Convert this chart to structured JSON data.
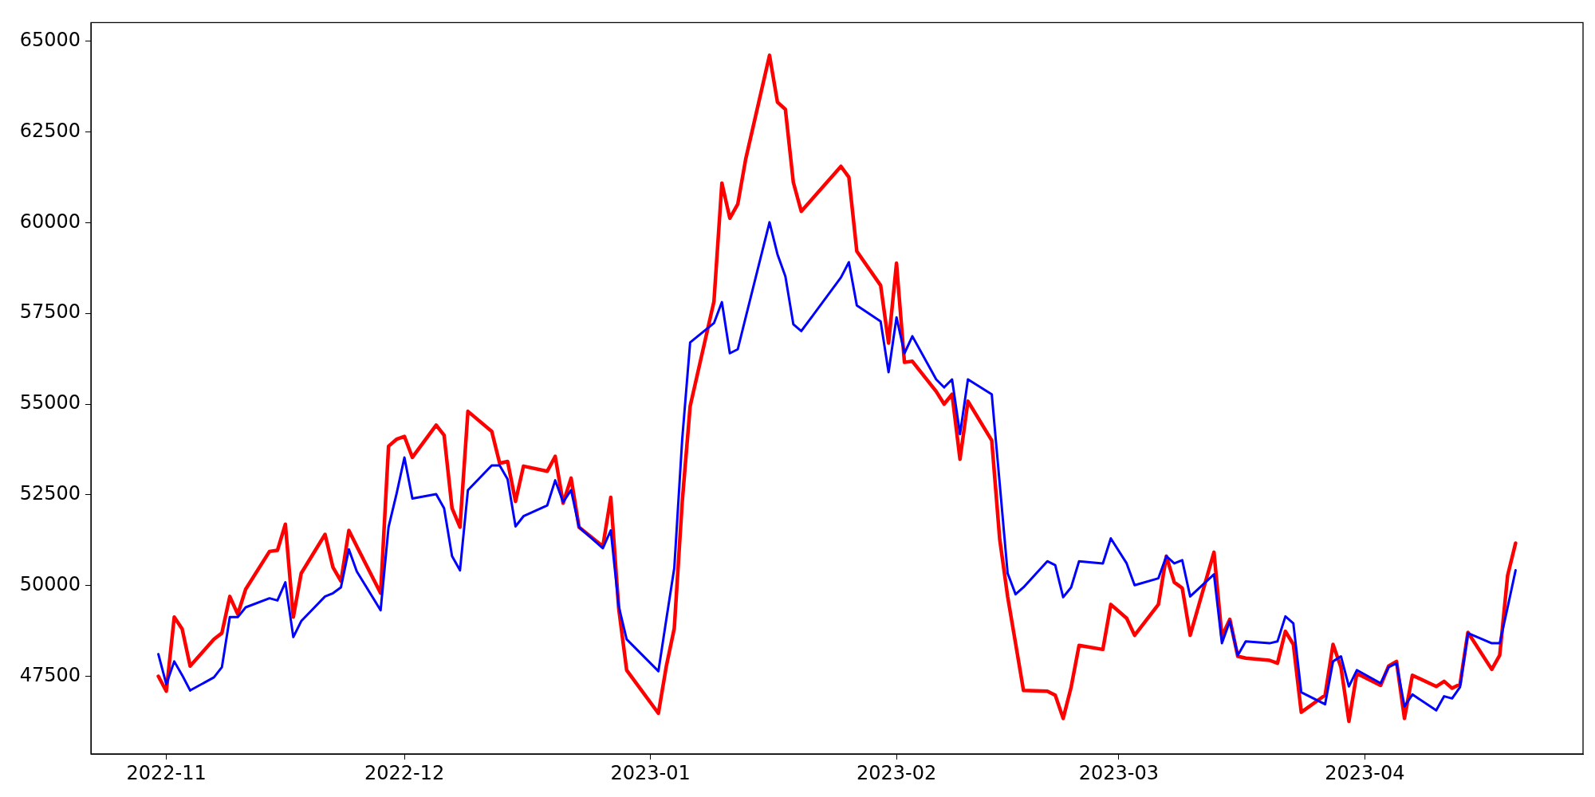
{
  "chart_data": {
    "type": "line",
    "x": [
      "2022-10-31",
      "2022-11-01",
      "2022-11-02",
      "2022-11-03",
      "2022-11-04",
      "2022-11-07",
      "2022-11-08",
      "2022-11-09",
      "2022-11-10",
      "2022-11-11",
      "2022-11-14",
      "2022-11-15",
      "2022-11-16",
      "2022-11-17",
      "2022-11-18",
      "2022-11-21",
      "2022-11-22",
      "2022-11-23",
      "2022-11-24",
      "2022-11-25",
      "2022-11-28",
      "2022-11-29",
      "2022-11-30",
      "2022-12-01",
      "2022-12-02",
      "2022-12-05",
      "2022-12-06",
      "2022-12-07",
      "2022-12-08",
      "2022-12-09",
      "2022-12-12",
      "2022-12-13",
      "2022-12-14",
      "2022-12-15",
      "2022-12-16",
      "2022-12-19",
      "2022-12-20",
      "2022-12-21",
      "2022-12-22",
      "2022-12-23",
      "2022-12-26",
      "2022-12-27",
      "2022-12-28",
      "2022-12-29",
      "2023-01-02",
      "2023-01-03",
      "2023-01-04",
      "2023-01-05",
      "2023-01-06",
      "2023-01-09",
      "2023-01-10",
      "2023-01-11",
      "2023-01-12",
      "2023-01-13",
      "2023-01-16",
      "2023-01-17",
      "2023-01-18",
      "2023-01-19",
      "2023-01-20",
      "2023-01-25",
      "2023-01-26",
      "2023-01-27",
      "2023-01-30",
      "2023-01-31",
      "2023-02-01",
      "2023-02-02",
      "2023-02-03",
      "2023-02-06",
      "2023-02-07",
      "2023-02-08",
      "2023-02-09",
      "2023-02-10",
      "2023-02-13",
      "2023-02-14",
      "2023-02-15",
      "2023-02-16",
      "2023-02-17",
      "2023-02-20",
      "2023-02-21",
      "2023-02-22",
      "2023-02-23",
      "2023-02-24",
      "2023-02-27",
      "2023-02-28",
      "2023-03-02",
      "2023-03-03",
      "2023-03-06",
      "2023-03-07",
      "2023-03-08",
      "2023-03-09",
      "2023-03-10",
      "2023-03-13",
      "2023-03-14",
      "2023-03-15",
      "2023-03-16",
      "2023-03-17",
      "2023-03-20",
      "2023-03-21",
      "2023-03-22",
      "2023-03-23",
      "2023-03-24",
      "2023-03-27",
      "2023-03-28",
      "2023-03-29",
      "2023-03-30",
      "2023-03-31",
      "2023-04-03",
      "2023-04-04",
      "2023-04-05",
      "2023-04-06",
      "2023-04-07",
      "2023-04-10",
      "2023-04-11",
      "2023-04-12",
      "2023-04-13",
      "2023-04-14",
      "2023-04-17",
      "2023-04-18",
      "2023-04-19",
      "2023-04-20"
    ],
    "series": [
      {
        "color": "#ff0000",
        "values": [
          47500,
          47090,
          49130,
          48800,
          47780,
          48520,
          48690,
          49700,
          49210,
          49900,
          50940,
          50970,
          51690,
          49130,
          50340,
          51410,
          50500,
          50120,
          51520,
          51080,
          49790,
          53840,
          54030,
          54110,
          53530,
          54420,
          54140,
          52130,
          51610,
          54800,
          54250,
          53370,
          53420,
          52320,
          53290,
          53150,
          53560,
          52270,
          52960,
          51610,
          51080,
          52430,
          49370,
          47670,
          46480,
          47780,
          48820,
          52300,
          54940,
          57830,
          61090,
          60120,
          60510,
          61750,
          64610,
          63320,
          63120,
          61110,
          60310,
          61550,
          61250,
          59210,
          58270,
          56680,
          58880,
          56150,
          56180,
          55350,
          55000,
          55270,
          53480,
          55080,
          54000,
          51280,
          49700,
          48410,
          47110,
          47090,
          46980,
          46340,
          47200,
          48350,
          48240,
          49480,
          49100,
          48630,
          49480,
          50810,
          50090,
          49930,
          48630,
          50920,
          48600,
          49070,
          48050,
          48000,
          47940,
          47860,
          48740,
          48380,
          46510,
          46980,
          48380,
          47750,
          46260,
          47580,
          47250,
          47780,
          47910,
          46340,
          47530,
          47220,
          47360,
          47170,
          47280,
          48710,
          47690,
          48080,
          50280,
          51170
        ]
      },
      {
        "color": "#0000ff",
        "values": [
          48110,
          47280,
          47910,
          47530,
          47110,
          47470,
          47750,
          49130,
          49130,
          49400,
          49650,
          49590,
          50090,
          48580,
          49020,
          49700,
          49790,
          49950,
          51000,
          50390,
          49320,
          51610,
          52520,
          53530,
          52400,
          52520,
          52130,
          50810,
          50420,
          52630,
          53310,
          53310,
          52930,
          51630,
          51910,
          52210,
          52900,
          52300,
          52630,
          51610,
          51030,
          51520,
          49430,
          48520,
          47640,
          49070,
          50480,
          54030,
          56700,
          57230,
          57810,
          56400,
          56510,
          57390,
          60010,
          59130,
          58520,
          57200,
          57010,
          58490,
          58910,
          57720,
          57280,
          55880,
          57390,
          56400,
          56870,
          55680,
          55460,
          55680,
          54170,
          55680,
          55270,
          52820,
          50340,
          49760,
          49950,
          50670,
          50560,
          49680,
          49950,
          50670,
          50610,
          51300,
          50610,
          50010,
          50200,
          50810,
          50610,
          50700,
          49700,
          50310,
          48410,
          49020,
          48080,
          48460,
          48410,
          48460,
          49150,
          48960,
          47060,
          46730,
          47910,
          48050,
          47220,
          47670,
          47310,
          47750,
          47860,
          46670,
          47000,
          46560,
          46950,
          46890,
          47200,
          48690,
          48410,
          48410,
          49400,
          50420
        ]
      }
    ],
    "xlim": [
      "2022-10-22T12:00",
      "2023-04-28T12:00"
    ],
    "xticks": [
      {
        "value": "2022-11-01",
        "label": "2022-11"
      },
      {
        "value": "2022-12-01",
        "label": "2022-12"
      },
      {
        "value": "2023-01-01",
        "label": "2023-01"
      },
      {
        "value": "2023-02-01",
        "label": "2023-02"
      },
      {
        "value": "2023-03-01",
        "label": "2023-03"
      },
      {
        "value": "2023-04-01",
        "label": "2023-04"
      }
    ],
    "ylim": [
      45360,
      65510
    ],
    "yticks": [
      47500,
      50000,
      52500,
      55000,
      57500,
      60000,
      62500,
      65000
    ],
    "grid": false,
    "legend": false,
    "marker": "none",
    "line_style": "solid"
  }
}
